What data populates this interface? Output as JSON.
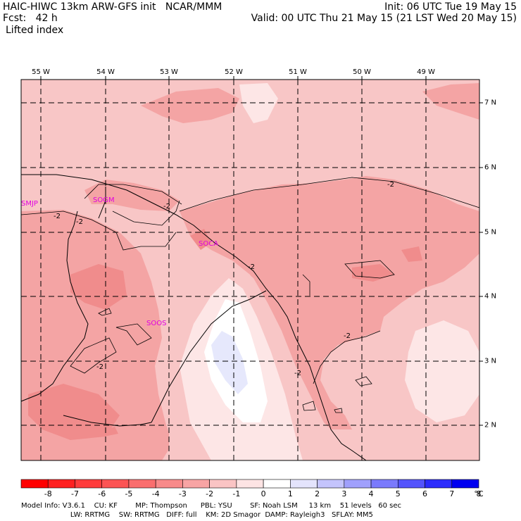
{
  "header": {
    "line1_left": "HAIC-HIWC 13km ARW-GFS init   NCAR/MMM",
    "line1_right": "Init: 06 UTC Tue 19 May 15",
    "line2_left": "Fcst:   42 h",
    "line2_right": "Valid: 00 UTC Thu 21 May 15 (21 LST Wed 20 May 15)",
    "field": "Lifted index"
  },
  "map": {
    "lon_labels": [
      "55 W",
      "54 W",
      "53 W",
      "52 W",
      "51 W",
      "50 W",
      "49 W"
    ],
    "lat_labels": [
      "7 N",
      "6 N",
      "5 N",
      "4 N",
      "3 N",
      "2 N"
    ],
    "stations": [
      "SMJP",
      "SOCA",
      "SOOS",
      "SOGM"
    ],
    "contour_labels": [
      "-2",
      "-2",
      "-2",
      "-2",
      "-2",
      "-2",
      "-2",
      "-2"
    ],
    "colors": {
      "deep": "#f08c8c",
      "mid": "#f4a4a4",
      "light": "#f8c6c6",
      "pale": "#fde6e6",
      "white": "#ffffff",
      "blue": "#e6e8fc"
    }
  },
  "colorbar": {
    "labels": [
      "-8",
      "-7",
      "-6",
      "-5",
      "-4",
      "-3",
      "-2",
      "-1",
      "0",
      "1",
      "2",
      "3",
      "4",
      "5",
      "6",
      "7",
      "8"
    ],
    "unit": "°C",
    "colors": [
      "#ff0000",
      "#ff2020",
      "#ff3c3c",
      "#fc5454",
      "#fa6e6e",
      "#f88a8a",
      "#f8a4a4",
      "#fac4c4",
      "#fde4e4",
      "#ffffff",
      "#e4e4fc",
      "#c4c4fc",
      "#a0a0fc",
      "#7a7afc",
      "#5454fc",
      "#2c2cfc",
      "#0000f0"
    ]
  },
  "footer": {
    "line1": "Model Info: V3.6.1    CU: KF        MP: Thompson      PBL: YSU        SF: Noah LSM     13 km    51 levels   60 sec",
    "line2": "                      LW: RRTMG    SW: RRTMG   DIFF: full    KM: 2D Smagor  DAMP: Rayleigh3   SFLAY: MM5"
  }
}
